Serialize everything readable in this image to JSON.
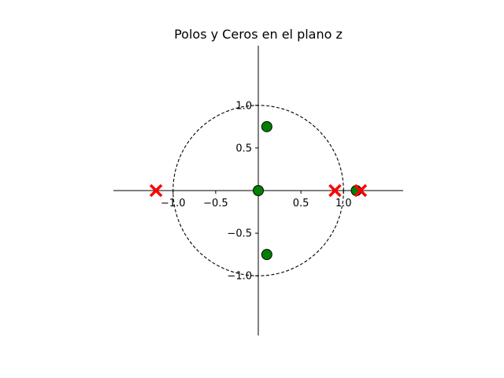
{
  "chart_data": {
    "type": "scatter",
    "title": "Polos y Ceros en el plano z",
    "xlabel": "",
    "ylabel": "",
    "xlim": [
      -1.7,
      1.7
    ],
    "ylim": [
      -1.7,
      1.7
    ],
    "grid": false,
    "unit_circle": {
      "radius": 1.0,
      "style": "dashed"
    },
    "x_ticks": [
      {
        "value": -1.0,
        "label": "−1.0"
      },
      {
        "value": -0.5,
        "label": "−0.5"
      },
      {
        "value": 0.5,
        "label": "0.5"
      },
      {
        "value": 1.0,
        "label": "1.0"
      }
    ],
    "y_ticks": [
      {
        "value": 1.0,
        "label": "1.0"
      },
      {
        "value": 0.5,
        "label": "0.5"
      },
      {
        "value": -0.5,
        "label": "−0.5"
      },
      {
        "value": -1.0,
        "label": "−1.0"
      }
    ],
    "zeros": {
      "marker": "circle",
      "color": "#008000",
      "points": [
        {
          "x": 0.0,
          "y": 0.0
        },
        {
          "x": 0.1,
          "y": 0.75
        },
        {
          "x": 0.1,
          "y": -0.75
        },
        {
          "x": 1.15,
          "y": 0.0
        }
      ]
    },
    "poles": {
      "marker": "x",
      "color": "#ff0000",
      "points": [
        {
          "x": -1.2,
          "y": 0.0
        },
        {
          "x": 0.9,
          "y": 0.0
        },
        {
          "x": 1.2,
          "y": 0.0
        }
      ]
    }
  }
}
